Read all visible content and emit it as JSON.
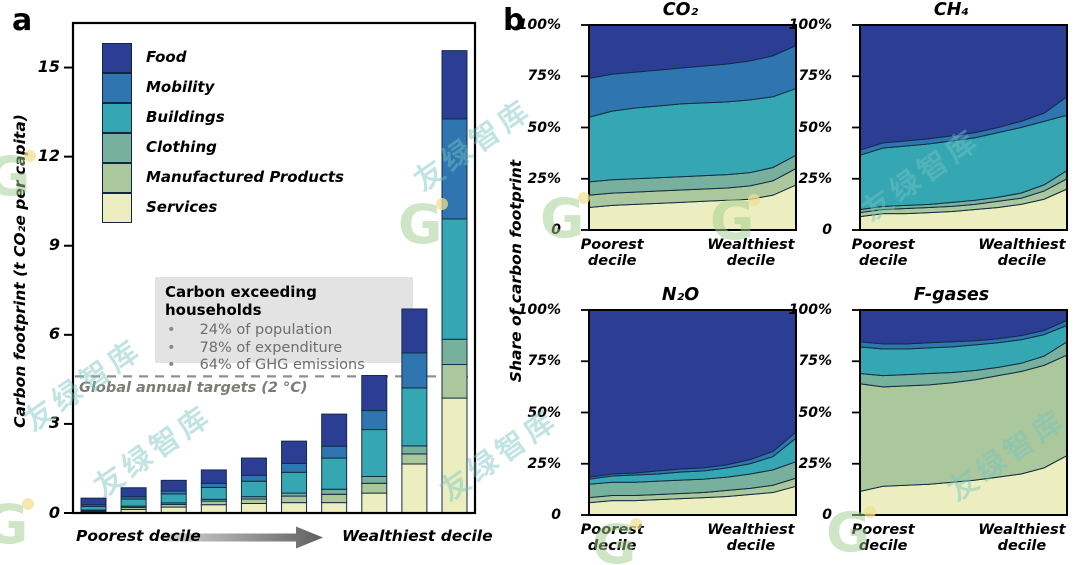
{
  "figure": {
    "panel_a_label": "a",
    "panel_b_label": "b"
  },
  "palette": {
    "food": "#2c3e94",
    "mobility": "#2f75b0",
    "buildings": "#35a7b3",
    "clothing": "#77b09c",
    "manufactured": "#aac89c",
    "services": "#eceebf",
    "outline": "#122c44",
    "target_line": "#909090",
    "annotation_bg": "#e3e3e3"
  },
  "watermark": {
    "text": "友绿智库",
    "logo": "G"
  },
  "panel_b": {
    "ylabel": "Share of carbon footprint",
    "ytick_labels": [
      "0",
      "25%",
      "50%",
      "75%",
      "100%"
    ],
    "ytick_values": [
      0,
      25,
      50,
      75,
      100
    ],
    "xlabel_left": "Poorest decile",
    "xlabel_right": "Wealthiest decile"
  },
  "chart_data": [
    {
      "id": "panel_a",
      "type": "bar",
      "stacked": true,
      "title": "",
      "ylabel": "Carbon footprint (t CO₂e per capita)",
      "ylim": [
        0,
        16.5
      ],
      "yticks": [
        0,
        3,
        6,
        9,
        12,
        15
      ],
      "categories": [
        "1",
        "2",
        "3",
        "4",
        "5",
        "6",
        "7",
        "8",
        "9",
        "10"
      ],
      "xlabel_left": "Poorest decile",
      "xlabel_right": "Wealthiest decile",
      "series": [
        {
          "name": "Services",
          "key": "services",
          "values": [
            0.05,
            0.12,
            0.2,
            0.28,
            0.32,
            0.35,
            0.35,
            0.67,
            1.65,
            3.87
          ]
        },
        {
          "name": "Manufactured Products",
          "key": "manufactured",
          "values": [
            0.03,
            0.07,
            0.09,
            0.12,
            0.15,
            0.22,
            0.28,
            0.33,
            0.34,
            1.13
          ]
        },
        {
          "name": "Clothing",
          "key": "clothing",
          "values": [
            0.02,
            0.04,
            0.05,
            0.06,
            0.08,
            0.1,
            0.17,
            0.23,
            0.27,
            0.85
          ]
        },
        {
          "name": "Buildings",
          "key": "buildings",
          "values": [
            0.12,
            0.24,
            0.3,
            0.4,
            0.52,
            0.7,
            1.05,
            1.58,
            1.95,
            4.05
          ]
        },
        {
          "name": "Mobility",
          "key": "mobility",
          "values": [
            0.06,
            0.08,
            0.1,
            0.14,
            0.2,
            0.3,
            0.4,
            0.64,
            1.18,
            3.37
          ]
        },
        {
          "name": "Food",
          "key": "food",
          "values": [
            0.22,
            0.3,
            0.36,
            0.45,
            0.58,
            0.75,
            1.08,
            1.18,
            1.48,
            2.3
          ]
        }
      ],
      "totals": [
        0.5,
        0.85,
        1.1,
        1.45,
        1.85,
        2.42,
        3.33,
        4.63,
        6.87,
        15.57
      ],
      "target_line": {
        "value": 4.6,
        "label": "Global annual targets (2 °C)"
      },
      "annotation": {
        "title": "Carbon exceeding households",
        "bullets": [
          "24% of population",
          "78% of expenditure",
          "64% of GHG emissions"
        ]
      }
    },
    {
      "id": "co2",
      "type": "area",
      "stacked": true,
      "title": "CO₂",
      "ylim": [
        0,
        100
      ],
      "x": [
        1,
        2,
        3,
        4,
        5,
        6,
        7,
        8,
        9,
        10
      ],
      "series": [
        {
          "name": "Services",
          "key": "services",
          "values": [
            11,
            12,
            12.5,
            13,
            13.5,
            14,
            14.5,
            15,
            17,
            22
          ]
        },
        {
          "name": "Manufactured Products",
          "key": "manufactured",
          "values": [
            6,
            6,
            6,
            6,
            6,
            6,
            6,
            6.5,
            7,
            8
          ]
        },
        {
          "name": "Clothing",
          "key": "clothing",
          "values": [
            6.5,
            6.5,
            6.5,
            6.5,
            6.5,
            6.5,
            6.5,
            6.5,
            6.5,
            6.5
          ]
        },
        {
          "name": "Buildings",
          "key": "buildings",
          "values": [
            31.5,
            33.5,
            34.5,
            35,
            35.5,
            35.5,
            35.5,
            35.5,
            34.5,
            32.5
          ]
        },
        {
          "name": "Mobility",
          "key": "mobility",
          "values": [
            19,
            18,
            17.5,
            17.5,
            17.5,
            18,
            18.5,
            19,
            20,
            21
          ]
        },
        {
          "name": "Food",
          "key": "food",
          "values": [
            26,
            24,
            23,
            22,
            21,
            20,
            19,
            17.5,
            15,
            10
          ]
        }
      ]
    },
    {
      "id": "ch4",
      "type": "area",
      "stacked": true,
      "title": "CH₄",
      "ylim": [
        0,
        100
      ],
      "x": [
        1,
        2,
        3,
        4,
        5,
        6,
        7,
        8,
        9,
        10
      ],
      "series": [
        {
          "name": "Services",
          "key": "services",
          "values": [
            6.5,
            8,
            8,
            8.5,
            9,
            10,
            11,
            12.5,
            15,
            20
          ]
        },
        {
          "name": "Manufactured Products",
          "key": "manufactured",
          "values": [
            2,
            2,
            2.5,
            2.5,
            2.5,
            2.5,
            3,
            3,
            4,
            5
          ]
        },
        {
          "name": "Clothing",
          "key": "clothing",
          "values": [
            1.5,
            1.5,
            1.5,
            1.5,
            2,
            2,
            2,
            2.5,
            3,
            4
          ]
        },
        {
          "name": "Buildings",
          "key": "buildings",
          "values": [
            26.5,
            28.5,
            29,
            29.5,
            30,
            30.5,
            31.5,
            32,
            31,
            27
          ]
        },
        {
          "name": "Mobility",
          "key": "mobility",
          "values": [
            2.5,
            2.5,
            2.5,
            2.5,
            2.5,
            2.5,
            2.5,
            3,
            4,
            9
          ]
        },
        {
          "name": "Food",
          "key": "food",
          "values": [
            61,
            57.5,
            56.5,
            55.5,
            54,
            52.5,
            50,
            47,
            43,
            35
          ]
        }
      ]
    },
    {
      "id": "n2o",
      "type": "area",
      "stacked": true,
      "title": "N₂O",
      "ylim": [
        0,
        100
      ],
      "x": [
        1,
        2,
        3,
        4,
        5,
        6,
        7,
        8,
        9,
        10
      ],
      "series": [
        {
          "name": "Services",
          "key": "services",
          "values": [
            6,
            7,
            7,
            7.5,
            8,
            8.5,
            9,
            10,
            11,
            14
          ]
        },
        {
          "name": "Manufactured Products",
          "key": "manufactured",
          "values": [
            2.5,
            2.5,
            2.5,
            2.5,
            2.5,
            2.5,
            3,
            3,
            3.5,
            4
          ]
        },
        {
          "name": "Clothing",
          "key": "clothing",
          "values": [
            6.5,
            6.5,
            6.5,
            6.5,
            6.5,
            6.5,
            6.5,
            7,
            7.5,
            8
          ]
        },
        {
          "name": "Buildings",
          "key": "buildings",
          "values": [
            2.5,
            3,
            3.5,
            3.5,
            4,
            4,
            4.5,
            5,
            6.5,
            11.5
          ]
        },
        {
          "name": "Mobility",
          "key": "mobility",
          "values": [
            1,
            1,
            1,
            1.5,
            1.5,
            1.5,
            1.5,
            2,
            2.5,
            3
          ]
        },
        {
          "name": "Food",
          "key": "food",
          "values": [
            81.5,
            80,
            79.5,
            78.5,
            77.5,
            77,
            75.5,
            73,
            69,
            59.5
          ]
        }
      ]
    },
    {
      "id": "fgas",
      "type": "area",
      "stacked": true,
      "title": "F-gases",
      "ylim": [
        0,
        100
      ],
      "x": [
        1,
        2,
        3,
        4,
        5,
        6,
        7,
        8,
        9,
        10
      ],
      "series": [
        {
          "name": "Services",
          "key": "services",
          "values": [
            11.5,
            14,
            14.5,
            15,
            16,
            17,
            18.5,
            20,
            23,
            29
          ]
        },
        {
          "name": "Manufactured Products",
          "key": "manufactured",
          "values": [
            52.5,
            48.5,
            48.5,
            48.5,
            48.5,
            49,
            49.5,
            50,
            50,
            49
          ]
        },
        {
          "name": "Clothing",
          "key": "clothing",
          "values": [
            5,
            5.5,
            5.5,
            5.5,
            5,
            4.5,
            4,
            4,
            4.5,
            6.5
          ]
        },
        {
          "name": "Buildings",
          "key": "buildings",
          "values": [
            13,
            13,
            12.5,
            12.5,
            12.5,
            12.5,
            12,
            11.5,
            10.5,
            8
          ]
        },
        {
          "name": "Mobility",
          "key": "mobility",
          "values": [
            2.5,
            2.5,
            2.5,
            2.5,
            2.5,
            2,
            2,
            2,
            2,
            2.5
          ]
        },
        {
          "name": "Food",
          "key": "food",
          "values": [
            15.5,
            16.5,
            16.5,
            16,
            15.5,
            15,
            14,
            12.5,
            10,
            5
          ]
        }
      ]
    }
  ]
}
